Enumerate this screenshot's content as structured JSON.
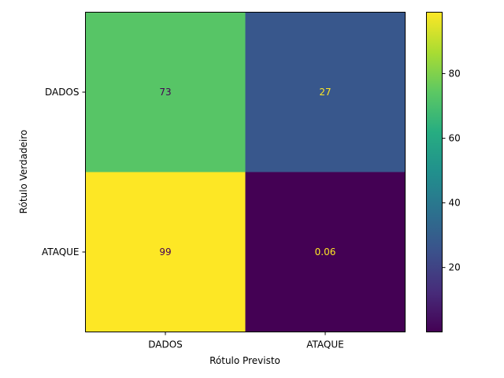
{
  "chart_data": {
    "type": "heatmap",
    "title": "",
    "xlabel": "Rótulo Previsto",
    "ylabel": "Rótulo Verdadeiro",
    "x_categories": [
      "DADOS",
      "ATAQUE"
    ],
    "y_categories": [
      "DADOS",
      "ATAQUE"
    ],
    "values": [
      [
        73,
        27
      ],
      [
        99,
        0.06
      ]
    ],
    "value_labels": [
      [
        "73",
        "27"
      ],
      [
        "99",
        "0.06"
      ]
    ],
    "colormap": "viridis",
    "colorbar": {
      "range": [
        0.06,
        99
      ],
      "ticks": [
        20,
        40,
        60,
        80
      ]
    },
    "grid": false
  }
}
